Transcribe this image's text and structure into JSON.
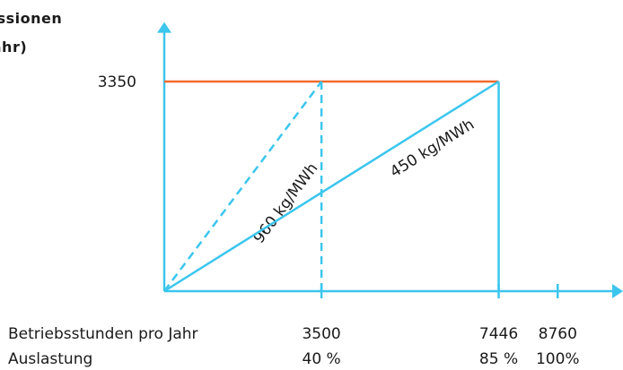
{
  "chart_data": {
    "type": "line",
    "ylabel_lines": [
      "Emissionen",
      "(t/Jahr)"
    ],
    "y_ticks": [
      3350
    ],
    "x_ticks": [
      3500,
      7446,
      8760
    ],
    "row_labels": {
      "hours": "Betriebsstunden pro Jahr",
      "utilization": "Auslastung"
    },
    "x_tick_labels": [
      "3500",
      "7446",
      "8760"
    ],
    "utilization_labels": [
      "40 %",
      "85 %",
      "100%"
    ],
    "xlim": [
      0,
      9500
    ],
    "ylim": [
      0,
      4300
    ],
    "series": [
      {
        "name": "960 kg/MWh",
        "style": "dashed",
        "x": [
          0,
          3500
        ],
        "y": [
          0,
          3350
        ]
      },
      {
        "name": "450 kg/MWh",
        "style": "solid",
        "x": [
          0,
          7446
        ],
        "y": [
          0,
          3350
        ]
      }
    ],
    "cap_line": {
      "y": 3350,
      "x": [
        0,
        7446
      ]
    },
    "drop_lines": [
      {
        "x": 3500,
        "y": 3350,
        "style": "dashed"
      },
      {
        "x": 7446,
        "y": 3350,
        "style": "solid"
      }
    ],
    "colors": {
      "axis": "#3cc6ee",
      "cap": "#f26a2e",
      "text": "#1a1a1a"
    }
  }
}
